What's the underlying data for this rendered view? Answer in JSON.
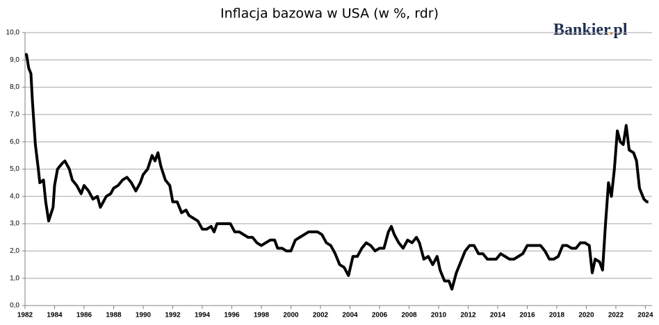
{
  "chart_data": {
    "type": "line",
    "title": "Inflacja bazowa w USA (w %, rdr)",
    "logo": [
      "Bankier",
      ".",
      "pl"
    ],
    "color": "#000000",
    "grid": true,
    "xlim": [
      1982,
      2024.45
    ],
    "xticks": [
      1982,
      1984,
      1986,
      1988,
      1990,
      1992,
      1994,
      1996,
      1998,
      2000,
      2002,
      2004,
      2006,
      2008,
      2010,
      2012,
      2014,
      2016,
      2018,
      2020,
      2022,
      2024
    ],
    "ylim": [
      0,
      10
    ],
    "yticks": [
      {
        "value": 0,
        "label": "0,0"
      },
      {
        "value": 1,
        "label": "1,0"
      },
      {
        "value": 2,
        "label": "2,0"
      },
      {
        "value": 3,
        "label": "3,0"
      },
      {
        "value": 4,
        "label": "4,0"
      },
      {
        "value": 5,
        "label": "5,0"
      },
      {
        "value": 6,
        "label": "6,0"
      },
      {
        "value": 7,
        "label": "7,0"
      },
      {
        "value": 8,
        "label": "8,0"
      },
      {
        "value": 9,
        "label": "9,0"
      },
      {
        "value": 10,
        "label": "10,0"
      }
    ],
    "x": [
      1982.0,
      1982.1,
      1982.25,
      1982.4,
      1982.5,
      1982.7,
      1982.9,
      1983.0,
      1983.25,
      1983.4,
      1983.6,
      1983.9,
      1984.0,
      1984.2,
      1984.5,
      1984.7,
      1985.0,
      1985.2,
      1985.5,
      1985.8,
      1986.0,
      1986.3,
      1986.6,
      1986.9,
      1987.1,
      1987.3,
      1987.5,
      1987.8,
      1988.0,
      1988.3,
      1988.6,
      1988.9,
      1989.2,
      1989.5,
      1989.8,
      1990.0,
      1990.3,
      1990.6,
      1990.8,
      1991.0,
      1991.2,
      1991.5,
      1991.8,
      1992.0,
      1992.3,
      1992.6,
      1992.9,
      1993.1,
      1993.4,
      1993.7,
      1994.0,
      1994.3,
      1994.6,
      1994.8,
      1995.0,
      1995.3,
      1995.6,
      1995.9,
      1996.2,
      1996.5,
      1996.8,
      1997.1,
      1997.4,
      1997.7,
      1998.0,
      1998.3,
      1998.6,
      1998.9,
      1999.1,
      1999.4,
      1999.7,
      2000.0,
      2000.3,
      2000.6,
      2000.9,
      2001.2,
      2001.5,
      2001.8,
      2002.1,
      2002.4,
      2002.7,
      2003.0,
      2003.3,
      2003.6,
      2003.9,
      2004.2,
      2004.5,
      2004.8,
      2005.1,
      2005.4,
      2005.7,
      2006.0,
      2006.3,
      2006.6,
      2006.8,
      2007.0,
      2007.3,
      2007.6,
      2007.9,
      2008.2,
      2008.5,
      2008.7,
      2009.0,
      2009.3,
      2009.6,
      2009.9,
      2010.1,
      2010.4,
      2010.7,
      2010.9,
      2011.2,
      2011.5,
      2011.8,
      2012.1,
      2012.4,
      2012.7,
      2013.0,
      2013.3,
      2013.6,
      2013.9,
      2014.2,
      2014.5,
      2014.8,
      2015.1,
      2015.4,
      2015.7,
      2016.0,
      2016.3,
      2016.6,
      2016.9,
      2017.2,
      2017.5,
      2017.8,
      2018.1,
      2018.4,
      2018.7,
      2019.0,
      2019.3,
      2019.6,
      2019.9,
      2020.2,
      2020.4,
      2020.6,
      2020.9,
      2021.1,
      2021.3,
      2021.5,
      2021.7,
      2021.9,
      2022.1,
      2022.3,
      2022.5,
      2022.7,
      2022.9,
      2023.2,
      2023.4,
      2023.6,
      2023.9,
      2024.1,
      2024.2
    ],
    "values": [
      9.2,
      9.2,
      8.7,
      8.5,
      7.5,
      5.9,
      5.0,
      4.5,
      4.6,
      3.8,
      3.1,
      3.6,
      4.4,
      5.0,
      5.2,
      5.3,
      5.0,
      4.6,
      4.4,
      4.1,
      4.4,
      4.2,
      3.9,
      4.0,
      3.6,
      3.8,
      4.0,
      4.1,
      4.3,
      4.4,
      4.6,
      4.7,
      4.5,
      4.2,
      4.5,
      4.8,
      5.0,
      5.5,
      5.3,
      5.6,
      5.1,
      4.6,
      4.4,
      3.8,
      3.8,
      3.4,
      3.5,
      3.3,
      3.2,
      3.1,
      2.8,
      2.8,
      2.9,
      2.7,
      3.0,
      3.0,
      3.0,
      3.0,
      2.7,
      2.7,
      2.6,
      2.5,
      2.5,
      2.3,
      2.2,
      2.3,
      2.4,
      2.4,
      2.1,
      2.1,
      2.0,
      2.0,
      2.4,
      2.5,
      2.6,
      2.7,
      2.7,
      2.7,
      2.6,
      2.3,
      2.2,
      1.9,
      1.5,
      1.4,
      1.1,
      1.8,
      1.8,
      2.1,
      2.3,
      2.2,
      2.0,
      2.1,
      2.1,
      2.7,
      2.9,
      2.6,
      2.3,
      2.1,
      2.4,
      2.3,
      2.5,
      2.3,
      1.7,
      1.8,
      1.5,
      1.8,
      1.3,
      0.9,
      0.9,
      0.6,
      1.2,
      1.6,
      2.0,
      2.2,
      2.2,
      1.9,
      1.9,
      1.7,
      1.7,
      1.7,
      1.9,
      1.8,
      1.7,
      1.7,
      1.8,
      1.9,
      2.2,
      2.2,
      2.2,
      2.2,
      2.0,
      1.7,
      1.7,
      1.8,
      2.2,
      2.2,
      2.1,
      2.1,
      2.3,
      2.3,
      2.2,
      1.2,
      1.7,
      1.6,
      1.3,
      3.0,
      4.5,
      4.0,
      5.0,
      6.4,
      6.0,
      5.9,
      6.6,
      5.7,
      5.6,
      5.3,
      4.3,
      3.9,
      3.8,
      3.8
    ]
  }
}
